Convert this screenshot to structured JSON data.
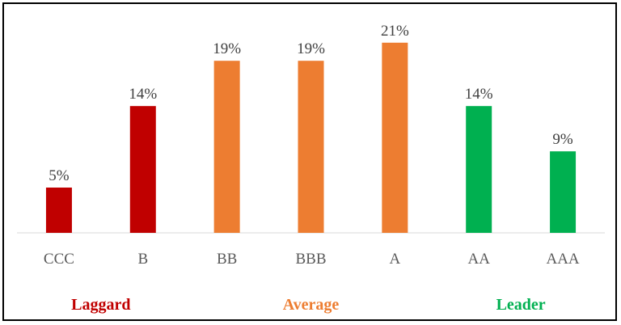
{
  "chart_data": {
    "type": "bar",
    "title": "",
    "xlabel": "",
    "ylabel": "",
    "categories": [
      "CCC",
      "B",
      "BB",
      "BBB",
      "A",
      "AA",
      "AAA"
    ],
    "values": [
      5,
      14,
      19,
      19,
      21,
      14,
      9
    ],
    "value_labels": [
      "5%",
      "14%",
      "19%",
      "19%",
      "21%",
      "14%",
      "9%"
    ],
    "ylim": [
      0,
      22
    ],
    "grid": false,
    "bar_colors": [
      "#c00000",
      "#c00000",
      "#ed7d31",
      "#ed7d31",
      "#ed7d31",
      "#00b050",
      "#00b050"
    ],
    "groups": [
      {
        "label": "Laggard",
        "color": "#c00000",
        "categories": [
          "CCC",
          "B"
        ]
      },
      {
        "label": "Average",
        "color": "#ed7d31",
        "categories": [
          "BB",
          "BBB",
          "A"
        ]
      },
      {
        "label": "Leader",
        "color": "#00b050",
        "categories": [
          "AA",
          "AAA"
        ]
      }
    ]
  }
}
